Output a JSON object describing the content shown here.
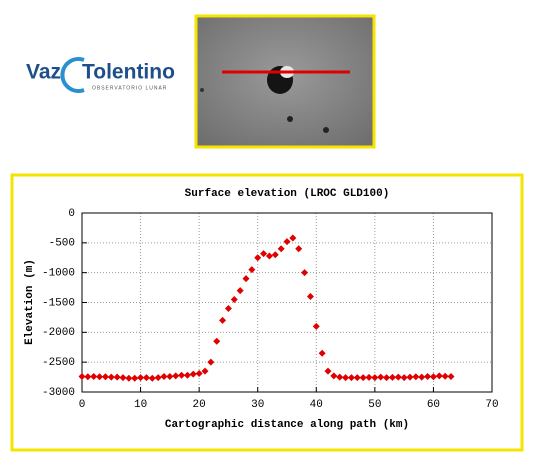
{
  "logo": {
    "name_left": "Vaz",
    "name_right": "Tolentino",
    "tagline": "OBSERVATORIO LUNAR"
  },
  "chart_data": {
    "type": "scatter",
    "title": "Surface elevation (LROC GLD100)",
    "xlabel": "Cartographic distance along path (km)",
    "ylabel": "Elevation (m)",
    "color": "#e00000",
    "grid": true,
    "xlim": [
      0,
      70
    ],
    "xticks": [
      0,
      10,
      20,
      30,
      40,
      50,
      60,
      70
    ],
    "ylim": [
      -3000,
      0
    ],
    "yticks": [
      -3000,
      -2500,
      -2000,
      -1500,
      -1000,
      -500,
      0
    ],
    "x": [
      0,
      1,
      2,
      3,
      4,
      5,
      6,
      7,
      8,
      9,
      10,
      11,
      12,
      13,
      14,
      15,
      16,
      17,
      18,
      19,
      20,
      21,
      22,
      23,
      24,
      25,
      26,
      27,
      28,
      29,
      30,
      31,
      32,
      33,
      34,
      35,
      36,
      37,
      38,
      39,
      40,
      41,
      42,
      43,
      44,
      45,
      46,
      47,
      48,
      49,
      50,
      51,
      52,
      53,
      54,
      55,
      56,
      57,
      58,
      59,
      60,
      61,
      62,
      63
    ],
    "values": [
      -2740,
      -2745,
      -2740,
      -2745,
      -2745,
      -2750,
      -2750,
      -2760,
      -2770,
      -2770,
      -2760,
      -2760,
      -2770,
      -2760,
      -2740,
      -2740,
      -2730,
      -2720,
      -2720,
      -2700,
      -2690,
      -2650,
      -2500,
      -2150,
      -1800,
      -1600,
      -1450,
      -1300,
      -1100,
      -950,
      -750,
      -680,
      -720,
      -700,
      -600,
      -480,
      -420,
      -600,
      -1000,
      -1400,
      -1900,
      -2350,
      -2650,
      -2730,
      -2750,
      -2760,
      -2760,
      -2760,
      -2760,
      -2755,
      -2760,
      -2750,
      -2760,
      -2755,
      -2750,
      -2760,
      -2750,
      -2745,
      -2750,
      -2740,
      -2745,
      -2730,
      -2735,
      -2740
    ]
  }
}
